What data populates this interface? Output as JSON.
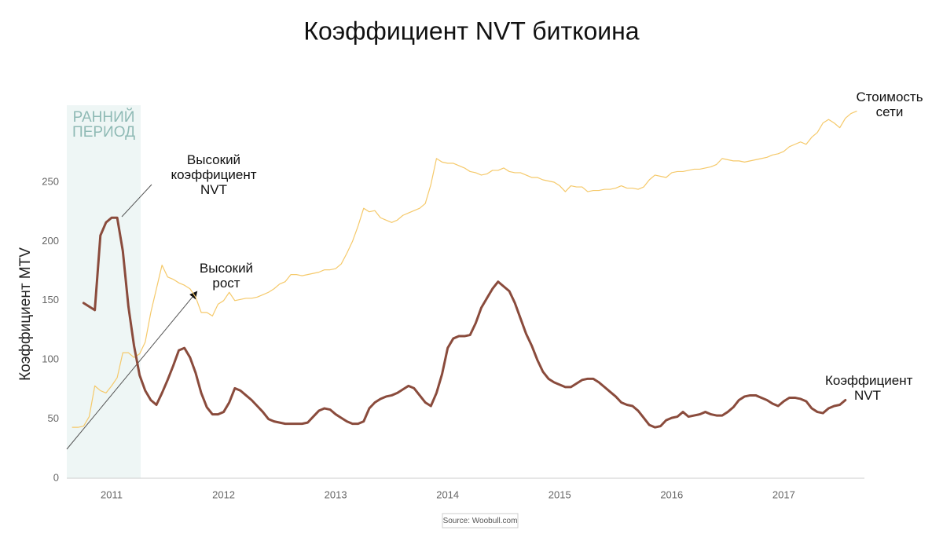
{
  "chart_data": {
    "type": "line",
    "title": "Коэффициент NVT биткоина",
    "y_label": "Коэффициент MTV",
    "source": "Source: Woobull.com",
    "shaded_region": {
      "label": "РАННИЙ ПЕРИОД",
      "range": [
        2010.6,
        2011.26
      ]
    },
    "annotations": [
      {
        "text": "Высокий коэффициент NVT"
      },
      {
        "text": "Высокий рост"
      }
    ],
    "xlim": [
      2010.6,
      2017.72
    ],
    "ylim": [
      0,
      315
    ],
    "xticks": [
      2011,
      2012,
      2013,
      2014,
      2015,
      2016,
      2017
    ],
    "yticks": [
      0,
      50,
      100,
      150,
      200,
      250
    ],
    "x": [
      2010.65,
      2010.7,
      2010.75,
      2010.8,
      2010.85,
      2010.9,
      2010.95,
      2011.0,
      2011.05,
      2011.1,
      2011.15,
      2011.2,
      2011.25,
      2011.3,
      2011.35,
      2011.4,
      2011.45,
      2011.5,
      2011.55,
      2011.6,
      2011.65,
      2011.7,
      2011.75,
      2011.8,
      2011.85,
      2011.9,
      2011.95,
      2012.0,
      2012.05,
      2012.1,
      2012.15,
      2012.2,
      2012.25,
      2012.3,
      2012.35,
      2012.4,
      2012.45,
      2012.5,
      2012.55,
      2012.6,
      2012.65,
      2012.7,
      2012.75,
      2012.8,
      2012.85,
      2012.9,
      2012.95,
      2013.0,
      2013.05,
      2013.1,
      2013.15,
      2013.2,
      2013.25,
      2013.3,
      2013.35,
      2013.4,
      2013.45,
      2013.5,
      2013.55,
      2013.6,
      2013.65,
      2013.7,
      2013.75,
      2013.8,
      2013.85,
      2013.9,
      2013.95,
      2014.0,
      2014.05,
      2014.1,
      2014.15,
      2014.2,
      2014.25,
      2014.3,
      2014.35,
      2014.4,
      2014.45,
      2014.5,
      2014.55,
      2014.6,
      2014.65,
      2014.7,
      2014.75,
      2014.8,
      2014.85,
      2014.9,
      2014.95,
      2015.0,
      2015.05,
      2015.1,
      2015.15,
      2015.2,
      2015.25,
      2015.3,
      2015.35,
      2015.4,
      2015.45,
      2015.5,
      2015.55,
      2015.6,
      2015.65,
      2015.7,
      2015.75,
      2015.8,
      2015.85,
      2015.9,
      2015.95,
      2016.0,
      2016.05,
      2016.1,
      2016.15,
      2016.2,
      2016.25,
      2016.3,
      2016.35,
      2016.4,
      2016.45,
      2016.5,
      2016.55,
      2016.6,
      2016.65,
      2016.7,
      2016.75,
      2016.8,
      2016.85,
      2016.9,
      2016.95,
      2017.0,
      2017.05,
      2017.1,
      2017.15,
      2017.2,
      2017.25,
      2017.3,
      2017.35,
      2017.4,
      2017.45,
      2017.5,
      2017.55,
      2017.6,
      2017.65
    ],
    "series": [
      {
        "name": "Стоимость сети",
        "color": "#f5c96a",
        "width": 1.2,
        "values": [
          43,
          43,
          44,
          52,
          78,
          74,
          72,
          78,
          85,
          106,
          106,
          102,
          105,
          115,
          140,
          160,
          180,
          170,
          168,
          165,
          163,
          160,
          153,
          140,
          140,
          137,
          147,
          150,
          157,
          150,
          151,
          152,
          152,
          153,
          155,
          157,
          160,
          164,
          166,
          172,
          172,
          171,
          172,
          173,
          174,
          176,
          176,
          177,
          181,
          190,
          200,
          213,
          228,
          225,
          226,
          220,
          218,
          216,
          218,
          222,
          224,
          226,
          228,
          232,
          248,
          270,
          267,
          266,
          266,
          264,
          262,
          259,
          258,
          256,
          257,
          260,
          260,
          262,
          259,
          258,
          258,
          256,
          254,
          254,
          252,
          251,
          250,
          247,
          242,
          247,
          246,
          246,
          242,
          243,
          243,
          244,
          244,
          245,
          247,
          245,
          245,
          244,
          246,
          252,
          256,
          255,
          254,
          258,
          259,
          259,
          260,
          261,
          261,
          262,
          263,
          265,
          270,
          269,
          268,
          268,
          267,
          268,
          269,
          270,
          271,
          273,
          274,
          276,
          280,
          282,
          284,
          282,
          288,
          292,
          300,
          303,
          300,
          296,
          304,
          308,
          310
        ]
      },
      {
        "name": "Коэффициент NVT",
        "color": "#8a4b3c",
        "width": 3,
        "values": [
          null,
          null,
          148,
          145,
          142,
          205,
          216,
          220,
          220,
          192,
          145,
          112,
          87,
          74,
          66,
          62,
          72,
          83,
          95,
          108,
          110,
          102,
          89,
          72,
          60,
          54,
          54,
          56,
          64,
          76,
          74,
          70,
          66,
          61,
          56,
          50,
          48,
          47,
          46,
          46,
          46,
          46,
          47,
          52,
          57,
          59,
          58,
          54,
          51,
          48,
          46,
          46,
          48,
          59,
          64,
          67,
          69,
          70,
          72,
          75,
          78,
          76,
          70,
          64,
          61,
          72,
          88,
          110,
          118,
          120,
          120,
          121,
          131,
          144,
          152,
          160,
          166,
          162,
          158,
          148,
          135,
          122,
          112,
          100,
          90,
          84,
          81,
          79,
          77,
          77,
          80,
          83,
          84,
          84,
          81,
          77,
          73,
          69,
          64,
          62,
          61,
          57,
          51,
          45,
          43,
          44,
          49,
          51,
          52,
          56,
          52,
          53,
          54,
          56,
          54,
          53,
          53,
          56,
          60,
          66,
          69,
          70,
          70,
          68,
          66,
          63,
          61,
          65,
          68,
          68,
          67,
          65,
          59,
          56,
          55,
          59,
          61,
          62,
          66,
          null,
          null
        ]
      }
    ]
  }
}
